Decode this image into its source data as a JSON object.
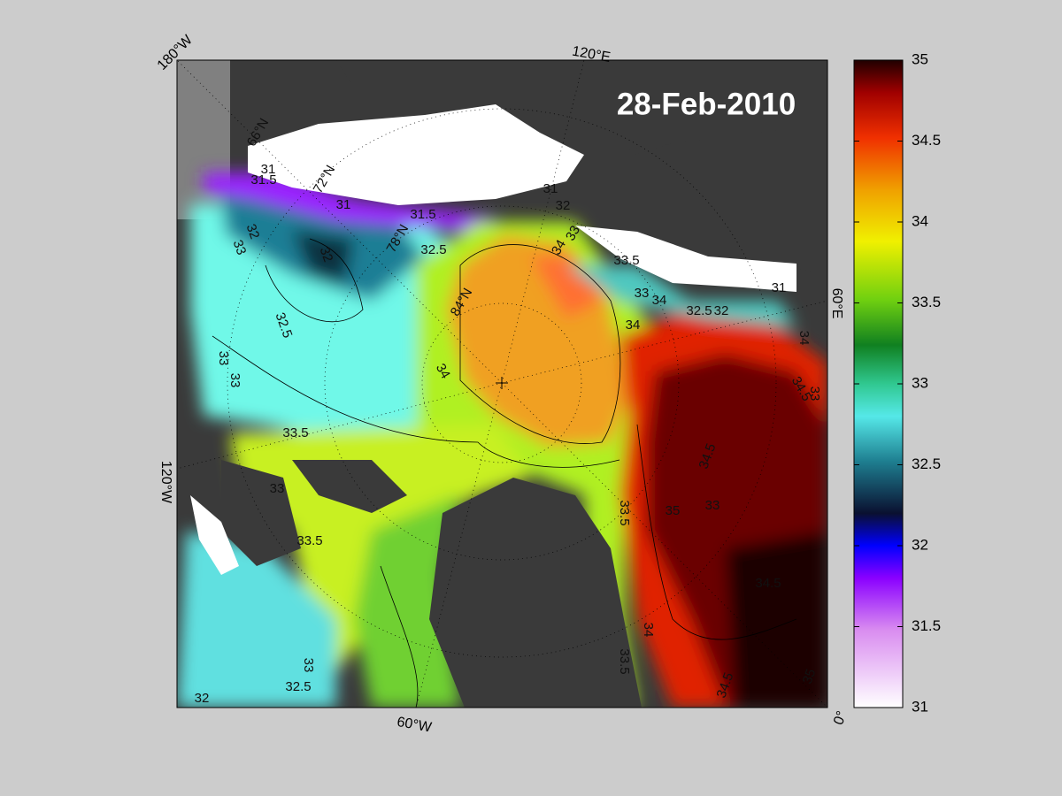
{
  "map": {
    "date": "28-Feb-2010",
    "longitude_labels": [
      "180°W",
      "120°E",
      "60°E",
      "0°",
      "60°W",
      "120°W"
    ],
    "latitude_labels": [
      "66°N",
      "72°N",
      "78°N",
      "84°N"
    ],
    "contour_labels": [
      "31",
      "31.5",
      "31",
      "31.5",
      "32",
      "33",
      "32",
      "32.5",
      "32.5",
      "33",
      "33",
      "33.5",
      "33",
      "33.5",
      "33",
      "32.5",
      "32",
      "34",
      "33",
      "34",
      "34",
      "31",
      "32",
      "33.5",
      "33",
      "34",
      "32.5",
      "32",
      "31",
      "34",
      "34.5",
      "33",
      "34.5",
      "35",
      "33",
      "33.5",
      "34.5",
      "34",
      "33.5",
      "34.5",
      "35"
    ]
  },
  "colorbar": {
    "range": [
      31,
      35
    ],
    "ticks": [
      31,
      31.5,
      32,
      32.5,
      33,
      33.5,
      34,
      34.5,
      35
    ]
  }
}
